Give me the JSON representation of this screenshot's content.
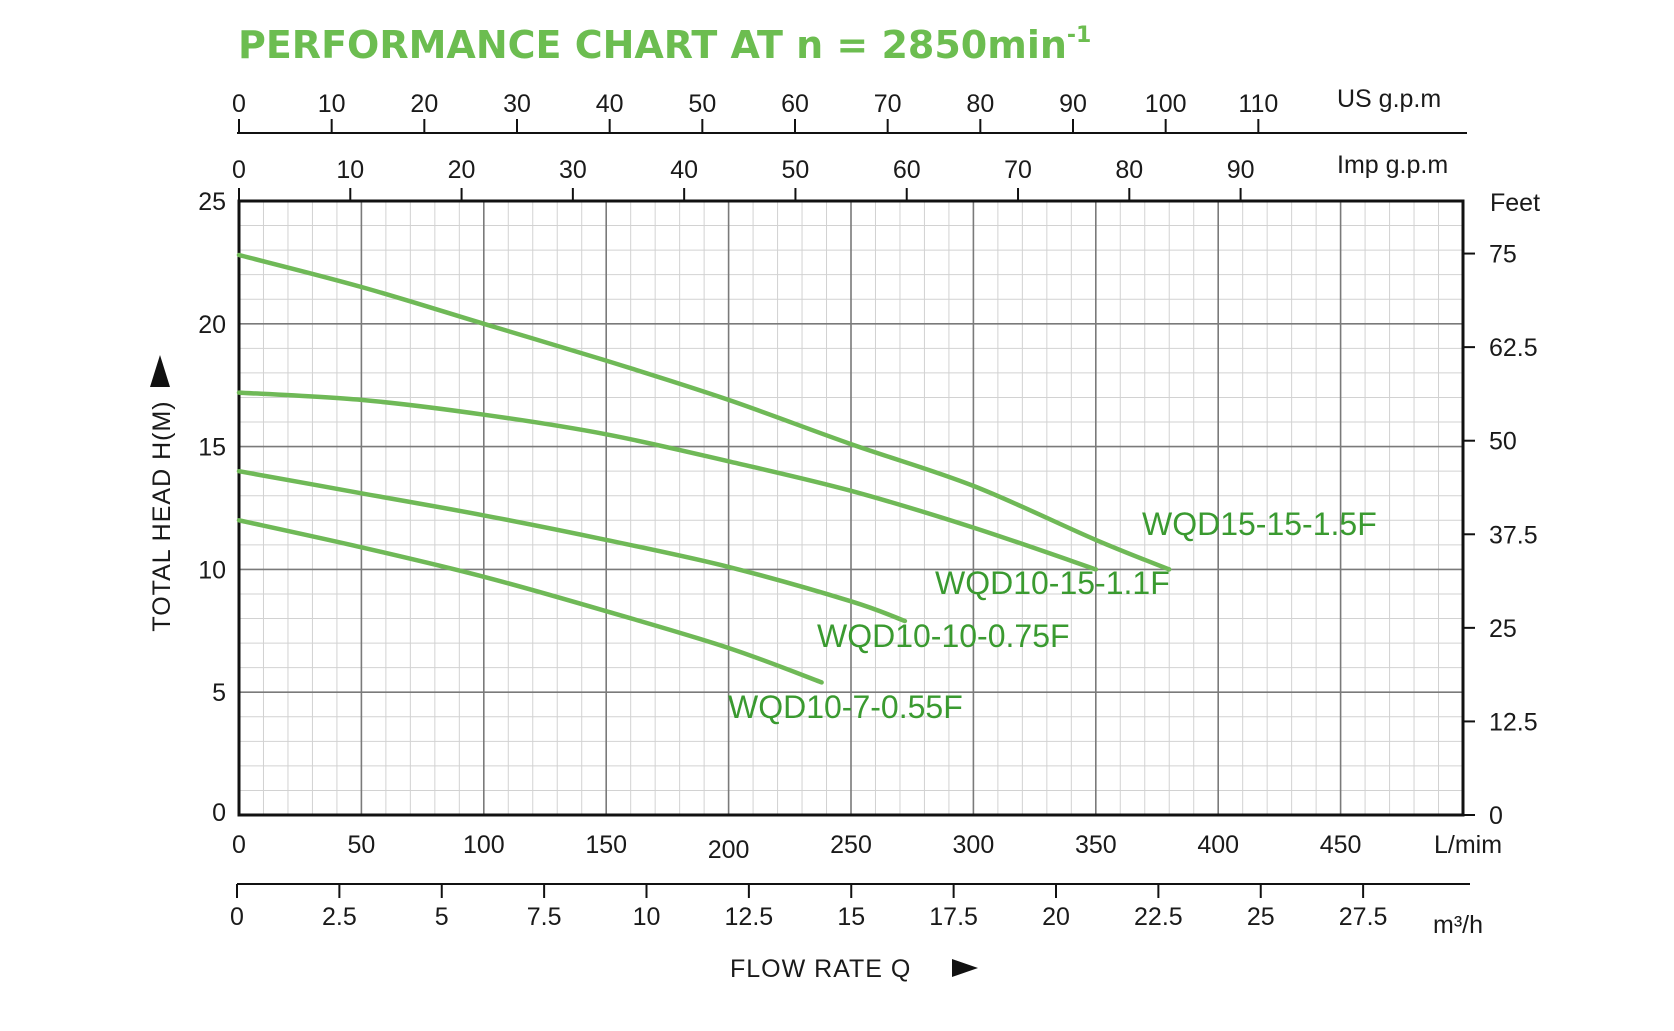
{
  "title": {
    "text": "PERFORMANCE CHART AT n = 2850min",
    "superscript": "-1"
  },
  "colors": {
    "curve": "#6fb957",
    "curve_label": "#3a9a30",
    "title": "#6cbd50",
    "grid_major": "#7a7a7a",
    "grid_minor": "#d2d2d2",
    "frame": "#111111"
  },
  "chart_data": {
    "type": "line",
    "x": {
      "label": "FLOW RATE Q",
      "unit": "L/mim",
      "range": [
        0,
        500
      ],
      "ticks": [
        "0",
        "50",
        "100",
        "150",
        "200",
        "250",
        "300",
        "350",
        "400",
        "450"
      ]
    },
    "y": {
      "label": "TOTAL HEAD H(M)",
      "range": [
        0,
        25
      ],
      "ticks": [
        "0",
        "5",
        "10",
        "15",
        "20",
        "25"
      ]
    },
    "y_right": {
      "unit": "Feet",
      "ticks": [
        "0",
        "12.5",
        "25",
        "37.5",
        "50",
        "62.5",
        "75"
      ]
    },
    "x_top_us": {
      "unit": "US g.p.m",
      "ticks": [
        "0",
        "10",
        "20",
        "30",
        "40",
        "50",
        "60",
        "70",
        "80",
        "90",
        "100",
        "110"
      ]
    },
    "x_top_imp": {
      "unit": "Imp g.p.m",
      "ticks": [
        "0",
        "10",
        "20",
        "30",
        "40",
        "50",
        "60",
        "70",
        "80",
        "90"
      ]
    },
    "x_bottom_m3h": {
      "unit": "m³/h",
      "ticks": [
        "0",
        "2.5",
        "5",
        "7.5",
        "10",
        "12.5",
        "15",
        "17.5",
        "20",
        "22.5",
        "25",
        "27.5"
      ]
    },
    "grid": true,
    "series": [
      {
        "name": "WQD15-15-1.5F",
        "x": [
          0,
          50,
          100,
          150,
          200,
          250,
          300,
          350,
          380
        ],
        "y": [
          22.8,
          21.5,
          20.0,
          18.5,
          16.9,
          15.1,
          13.4,
          11.2,
          10.0
        ]
      },
      {
        "name": "WQD10-15-1.1F",
        "x": [
          0,
          50,
          100,
          150,
          200,
          250,
          300,
          350
        ],
        "y": [
          17.2,
          16.9,
          16.3,
          15.5,
          14.4,
          13.2,
          11.7,
          10.0
        ]
      },
      {
        "name": "WQD10-10-0.75F",
        "x": [
          0,
          50,
          100,
          150,
          200,
          250,
          272
        ],
        "y": [
          14.0,
          13.1,
          12.2,
          11.2,
          10.1,
          8.7,
          7.9
        ]
      },
      {
        "name": "WQD10-7-0.55F",
        "x": [
          0,
          50,
          100,
          150,
          200,
          238
        ],
        "y": [
          12.0,
          10.9,
          9.7,
          8.3,
          6.8,
          5.4
        ]
      }
    ]
  }
}
